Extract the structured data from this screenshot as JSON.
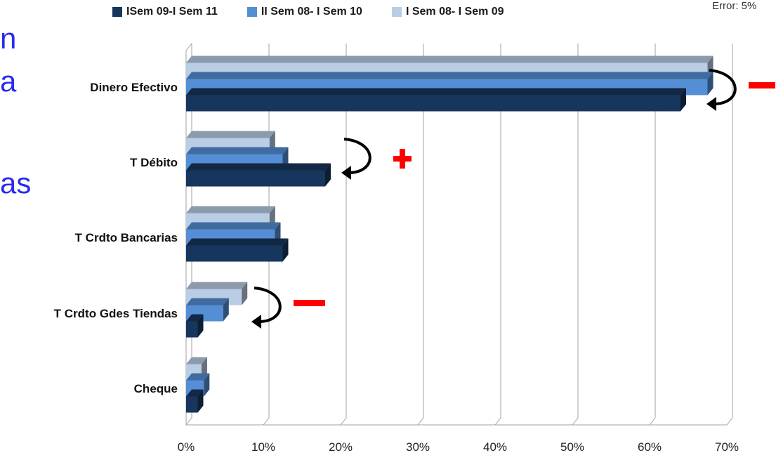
{
  "side_fragments": [
    "n",
    "a",
    "as"
  ],
  "error_note": "Error: 5%",
  "chart_data": {
    "type": "bar",
    "orientation": "horizontal",
    "categories": [
      "Dinero Efectivo",
      "T Débito",
      "T Crdto Bancarias",
      "T Crdto Gdes Tiendas",
      "Cheque"
    ],
    "series": [
      {
        "name": "ISem 09-I Sem 11",
        "color": "#17365d",
        "values": [
          64,
          18,
          12.5,
          1.5,
          1.5
        ]
      },
      {
        "name": "II Sem 08- I Sem 10",
        "color": "#558ed5",
        "values": [
          67.5,
          12.5,
          11.5,
          4.8,
          2.3
        ]
      },
      {
        "name": "I Sem 08- I Sem 09",
        "color": "#b9cde5",
        "values": [
          67.5,
          10.8,
          10.8,
          7.2,
          2.0
        ]
      }
    ],
    "x_ticks": [
      "0%",
      "10%",
      "20%",
      "30%",
      "40%",
      "50%",
      "60%",
      "70%"
    ],
    "xlim": [
      0,
      70
    ],
    "grid": true,
    "legend_position": "top",
    "annotations": [
      {
        "category": "Dinero Efectivo",
        "arrow": "down",
        "sign": "−",
        "sign_color": "#ff0000"
      },
      {
        "category": "T Débito",
        "arrow": "down",
        "sign": "+",
        "sign_color": "#ff0000"
      },
      {
        "category": "T Crdto Gdes Tiendas",
        "arrow": "down",
        "sign": "−",
        "sign_color": "#ff0000"
      }
    ]
  }
}
